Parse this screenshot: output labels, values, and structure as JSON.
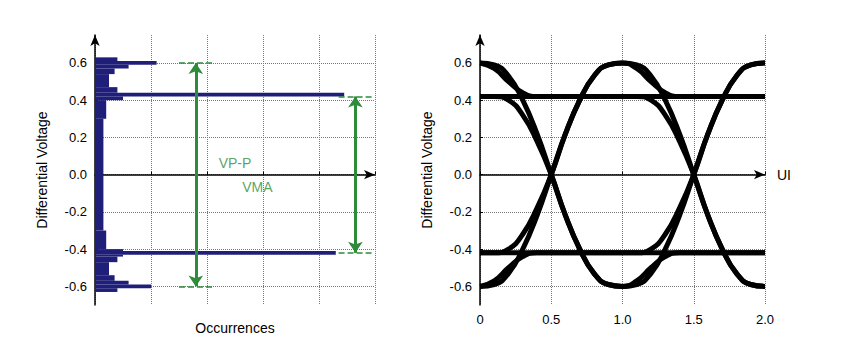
{
  "chart_data": [
    {
      "type": "histogram",
      "orientation": "horizontal",
      "xlabel": "Occurrences",
      "ylabel": "Differential Voltage",
      "bins": [
        -0.63,
        -0.61,
        -0.59,
        -0.57,
        -0.54,
        -0.47,
        -0.44,
        -0.43,
        -0.41,
        -0.4,
        -0.3,
        0.3,
        0.4,
        0.42,
        0.44,
        0.47,
        0.54,
        0.57,
        0.59,
        0.61,
        0.63
      ],
      "values": [
        8,
        20,
        12,
        7,
        5,
        8,
        10,
        86,
        10,
        4,
        3,
        4,
        10,
        89,
        8,
        5,
        7,
        12,
        22,
        8
      ],
      "color": "#1f1f7a",
      "xlim": [
        0,
        100
      ],
      "xticks": [
        0,
        20,
        40,
        60,
        80,
        100
      ],
      "ylim": [
        -0.7,
        0.75
      ],
      "yticks": [
        -0.6,
        -0.4,
        -0.2,
        {
          "value": 0,
          "label": "0.0"
        },
        0.2,
        0.4,
        0.6
      ],
      "tick_labels": "y",
      "grid": true,
      "annotations": [
        {
          "text": "VP-P",
          "y": [
            -0.6,
            0.6
          ]
        },
        {
          "text": "VMA",
          "y": [
            -0.42,
            0.42
          ]
        }
      ]
    },
    {
      "type": "line",
      "xlabel": "UI",
      "ylabel": "Differential Voltage",
      "color": "#000000",
      "x": [
        0,
        0.1,
        0.2,
        0.3,
        0.4,
        0.5,
        0.6,
        0.7,
        0.8,
        0.9,
        1.0,
        1.1,
        1.2,
        1.3,
        1.4,
        1.5,
        1.6,
        1.7,
        1.8,
        1.9,
        2.0
      ],
      "series": [
        {
          "values": [
            0.42,
            0.42,
            0.42,
            0.42,
            0.42,
            0.42,
            0.42,
            0.42,
            0.42,
            0.42,
            0.42,
            0.42,
            0.42,
            0.42,
            0.42,
            0.42,
            0.42,
            0.42,
            0.42,
            0.42,
            0.42
          ]
        },
        {
          "values": [
            -0.42,
            -0.42,
            -0.42,
            -0.42,
            -0.42,
            -0.42,
            -0.42,
            -0.42,
            -0.42,
            -0.42,
            -0.42,
            -0.42,
            -0.42,
            -0.42,
            -0.42,
            -0.42,
            -0.42,
            -0.42,
            -0.42,
            -0.42,
            -0.42
          ]
        },
        {
          "values": [
            0.6,
            0.59,
            0.53,
            0.4,
            0.22,
            0,
            -0.22,
            -0.4,
            -0.53,
            -0.59,
            -0.6,
            -0.59,
            -0.53,
            -0.4,
            -0.22,
            0,
            0.22,
            0.4,
            0.53,
            0.59,
            0.6
          ]
        },
        {
          "values": [
            -0.6,
            -0.59,
            -0.53,
            -0.4,
            -0.22,
            0,
            0.22,
            0.4,
            0.53,
            0.59,
            0.6,
            0.59,
            0.53,
            0.4,
            0.22,
            0,
            -0.22,
            -0.4,
            -0.53,
            -0.59,
            -0.6
          ]
        },
        {
          "values": [
            0.42,
            0.42,
            0.4,
            0.32,
            0.18,
            0,
            -0.22,
            -0.4,
            -0.53,
            -0.59,
            -0.6,
            -0.57,
            -0.5,
            -0.44,
            -0.42,
            -0.42,
            -0.42,
            -0.42,
            -0.42,
            -0.42,
            -0.42
          ]
        },
        {
          "values": [
            -0.42,
            -0.42,
            -0.4,
            -0.32,
            -0.18,
            0,
            0.22,
            0.4,
            0.53,
            0.59,
            0.6,
            0.57,
            0.5,
            0.44,
            0.42,
            0.42,
            0.42,
            0.42,
            0.42,
            0.42,
            0.42
          ]
        },
        {
          "values": [
            -0.6,
            -0.57,
            -0.5,
            -0.44,
            -0.42,
            -0.42,
            -0.42,
            -0.42,
            -0.42,
            -0.42,
            -0.42,
            -0.42,
            -0.4,
            -0.32,
            -0.18,
            0,
            0.22,
            0.4,
            0.53,
            0.59,
            0.6
          ]
        },
        {
          "values": [
            0.6,
            0.57,
            0.5,
            0.44,
            0.42,
            0.42,
            0.42,
            0.42,
            0.42,
            0.42,
            0.42,
            0.42,
            0.4,
            0.32,
            0.18,
            0,
            -0.22,
            -0.4,
            -0.53,
            -0.59,
            -0.6
          ]
        }
      ],
      "xlim": [
        0,
        2
      ],
      "xticks": [
        0,
        0.5,
        {
          "value": 1,
          "label": "1.0"
        },
        1.5,
        {
          "value": 2,
          "label": "2.0"
        }
      ],
      "ylim": [
        -0.7,
        0.75
      ],
      "yticks": [
        -0.6,
        -0.4,
        -0.2,
        {
          "value": 0,
          "label": "0.0"
        },
        0.2,
        0.4,
        0.6
      ],
      "grid": true
    }
  ]
}
